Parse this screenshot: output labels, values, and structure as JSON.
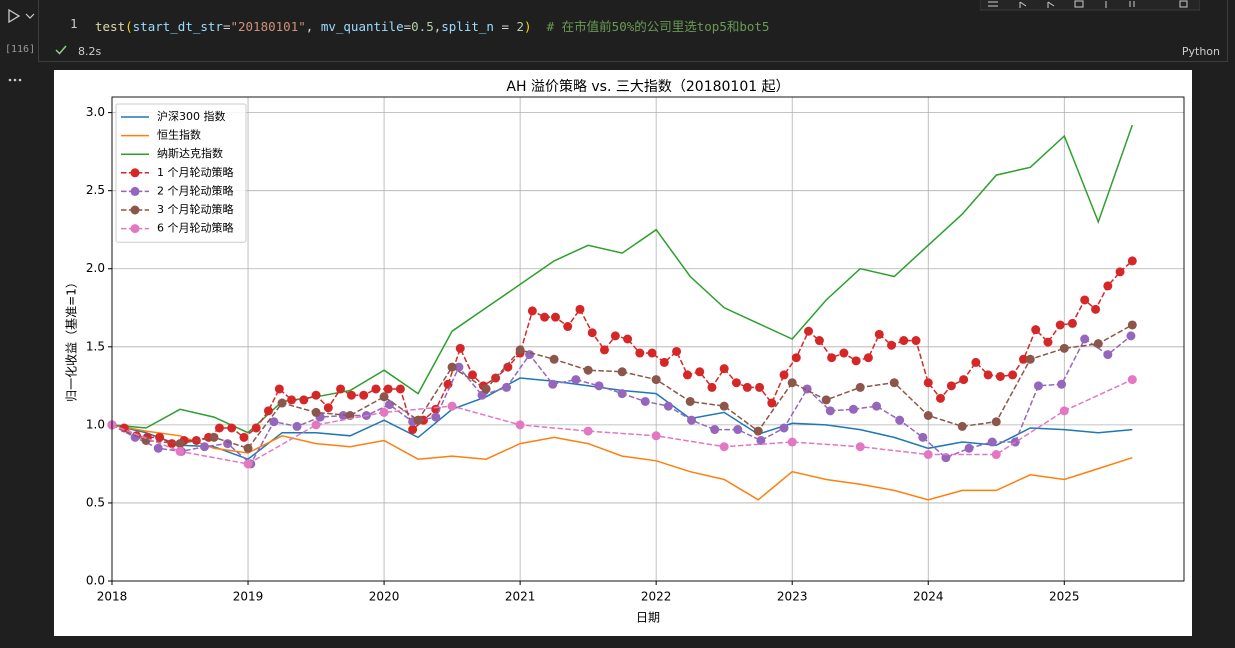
{
  "cell": {
    "execution_count": "[116]",
    "line_number": "1",
    "code_tokens": [
      {
        "text": "test",
        "color": "#dcdcaa"
      },
      {
        "text": "(",
        "color": "#ffd700"
      },
      {
        "text": "start_dt_str",
        "color": "#9cdcfe"
      },
      {
        "text": "=",
        "color": "#d4d4d4"
      },
      {
        "text": "\"20180101\"",
        "color": "#ce9178"
      },
      {
        "text": ", ",
        "color": "#d4d4d4"
      },
      {
        "text": "mv_quantile",
        "color": "#9cdcfe"
      },
      {
        "text": "=",
        "color": "#d4d4d4"
      },
      {
        "text": "0.5",
        "color": "#b5cea8"
      },
      {
        "text": ",",
        "color": "#d4d4d4"
      },
      {
        "text": "split_n",
        "color": "#9cdcfe"
      },
      {
        "text": " = ",
        "color": "#d4d4d4"
      },
      {
        "text": "2",
        "color": "#b5cea8"
      },
      {
        "text": ")",
        "color": "#ffd700"
      },
      {
        "text": "  # 在市值前50%的公司里选top5和bot5",
        "color": "#6a9955"
      }
    ],
    "status_time": "8.2s",
    "language": "Python"
  },
  "chart_data": {
    "type": "line",
    "title": "AH 溢价策略 vs. 三大指数（20180101 起）",
    "x_label": "日期",
    "y_label": "归一化收益（基准=1）",
    "xlim": [
      2018,
      2025.88
    ],
    "xticks": [
      2018,
      2019,
      2020,
      2021,
      2022,
      2023,
      2024,
      2025
    ],
    "ylim": [
      0,
      3.1
    ],
    "yticks": [
      {
        "value": 0,
        "label": "0.0"
      },
      0.5,
      {
        "value": 1,
        "label": "1.0"
      },
      1.5,
      {
        "value": 2,
        "label": "2.0"
      },
      2.5,
      {
        "value": 3,
        "label": "3.0"
      }
    ],
    "grid": true,
    "legend": "upper left",
    "series": [
      {
        "name": "沪深300 指数",
        "color": "#1f77b4",
        "linestyle": "solid",
        "x": [
          2018,
          2018.25,
          2018.5,
          2018.75,
          2019,
          2019.25,
          2019.5,
          2019.75,
          2020,
          2020.25,
          2020.5,
          2020.75,
          2021,
          2021.25,
          2021.5,
          2021.75,
          2022,
          2022.25,
          2022.5,
          2022.75,
          2023,
          2023.25,
          2023.5,
          2023.75,
          2024,
          2024.25,
          2024.5,
          2024.75,
          2025,
          2025.25,
          2025.5
        ],
        "values": [
          1.0,
          0.95,
          0.87,
          0.86,
          0.78,
          0.95,
          0.95,
          0.93,
          1.03,
          0.92,
          1.1,
          1.18,
          1.3,
          1.28,
          1.25,
          1.22,
          1.2,
          1.04,
          1.08,
          0.94,
          1.01,
          1.0,
          0.97,
          0.92,
          0.85,
          0.89,
          0.87,
          0.98,
          0.97,
          0.95,
          0.97
        ]
      },
      {
        "name": "恒生指数",
        "color": "#ff7f0e",
        "linestyle": "solid",
        "x": [
          2018,
          2018.25,
          2018.5,
          2018.75,
          2019,
          2019.25,
          2019.5,
          2019.75,
          2020,
          2020.25,
          2020.5,
          2020.75,
          2021,
          2021.25,
          2021.5,
          2021.75,
          2022,
          2022.25,
          2022.5,
          2022.75,
          2023,
          2023.25,
          2023.5,
          2023.75,
          2024,
          2024.25,
          2024.5,
          2024.75,
          2025,
          2025.25,
          2025.5
        ],
        "values": [
          1.0,
          0.96,
          0.93,
          0.85,
          0.82,
          0.93,
          0.88,
          0.86,
          0.9,
          0.78,
          0.8,
          0.78,
          0.88,
          0.92,
          0.88,
          0.8,
          0.77,
          0.7,
          0.65,
          0.52,
          0.7,
          0.65,
          0.62,
          0.58,
          0.52,
          0.58,
          0.58,
          0.68,
          0.65,
          0.72,
          0.79
        ]
      },
      {
        "name": "纳斯达克指数",
        "color": "#2ca02c",
        "linestyle": "solid",
        "x": [
          2018,
          2018.25,
          2018.5,
          2018.75,
          2019,
          2019.25,
          2019.5,
          2019.75,
          2020,
          2020.25,
          2020.5,
          2020.75,
          2021,
          2021.25,
          2021.5,
          2021.75,
          2022,
          2022.25,
          2022.5,
          2022.75,
          2023,
          2023.25,
          2023.5,
          2023.75,
          2024,
          2024.25,
          2024.5,
          2024.75,
          2025,
          2025.25,
          2025.5
        ],
        "values": [
          1.0,
          0.98,
          1.1,
          1.05,
          0.95,
          1.15,
          1.18,
          1.22,
          1.35,
          1.2,
          1.6,
          1.75,
          1.9,
          2.05,
          2.15,
          2.1,
          2.25,
          1.95,
          1.75,
          1.65,
          1.55,
          1.8,
          2.0,
          1.95,
          2.15,
          2.35,
          2.6,
          2.65,
          2.85,
          2.3,
          2.92
        ]
      },
      {
        "name": "1 个月轮动策略",
        "color": "#d62728",
        "linestyle": "dashed",
        "marker": "o",
        "x": [
          2018.0,
          2018.09,
          2018.18,
          2018.26,
          2018.35,
          2018.44,
          2018.53,
          2018.62,
          2018.71,
          2018.79,
          2018.88,
          2018.97,
          2019.06,
          2019.15,
          2019.23,
          2019.32,
          2019.41,
          2019.5,
          2019.59,
          2019.68,
          2019.76,
          2019.85,
          2019.94,
          2020.03,
          2020.12,
          2020.21,
          2020.29,
          2020.38,
          2020.47,
          2020.56,
          2020.65,
          2020.73,
          2020.82,
          2020.91,
          2021.0,
          2021.09,
          2021.18,
          2021.26,
          2021.35,
          2021.44,
          2021.53,
          2021.62,
          2021.7,
          2021.79,
          2021.88,
          2021.97,
          2022.06,
          2022.15,
          2022.23,
          2022.32,
          2022.41,
          2022.5,
          2022.59,
          2022.67,
          2022.76,
          2022.85,
          2022.94,
          2023.03,
          2023.12,
          2023.2,
          2023.29,
          2023.38,
          2023.47,
          2023.56,
          2023.64,
          2023.73,
          2023.82,
          2023.91,
          2024.0,
          2024.09,
          2024.17,
          2024.26,
          2024.35,
          2024.44,
          2024.53,
          2024.62,
          2024.7,
          2024.79,
          2024.88,
          2024.97,
          2025.06,
          2025.15,
          2025.23,
          2025.32,
          2025.41,
          2025.5
        ],
        "values": [
          1.0,
          0.98,
          0.93,
          0.92,
          0.92,
          0.88,
          0.9,
          0.9,
          0.92,
          0.98,
          0.98,
          0.92,
          0.98,
          1.09,
          1.23,
          1.16,
          1.16,
          1.19,
          1.11,
          1.23,
          1.19,
          1.19,
          1.23,
          1.23,
          1.23,
          0.97,
          1.03,
          1.1,
          1.26,
          1.49,
          1.32,
          1.25,
          1.3,
          1.37,
          1.46,
          1.73,
          1.69,
          1.69,
          1.63,
          1.74,
          1.59,
          1.48,
          1.57,
          1.55,
          1.46,
          1.46,
          1.4,
          1.47,
          1.32,
          1.34,
          1.24,
          1.36,
          1.27,
          1.24,
          1.24,
          1.14,
          1.32,
          1.43,
          1.6,
          1.54,
          1.43,
          1.46,
          1.41,
          1.43,
          1.58,
          1.51,
          1.54,
          1.54,
          1.27,
          1.17,
          1.25,
          1.29,
          1.4,
          1.32,
          1.31,
          1.32,
          1.42,
          1.61,
          1.53,
          1.64,
          1.65,
          1.8,
          1.74,
          1.89,
          1.98,
          2.05
        ]
      },
      {
        "name": "2 个月轮动策略",
        "color": "#9467bd",
        "linestyle": "dashed",
        "marker": "o",
        "x": [
          2018.0,
          2018.17,
          2018.34,
          2018.51,
          2018.68,
          2018.85,
          2019.02,
          2019.19,
          2019.36,
          2019.53,
          2019.7,
          2019.87,
          2020.04,
          2020.21,
          2020.38,
          2020.55,
          2020.72,
          2020.9,
          2021.07,
          2021.24,
          2021.41,
          2021.58,
          2021.75,
          2021.92,
          2022.09,
          2022.26,
          2022.43,
          2022.6,
          2022.77,
          2022.94,
          2023.11,
          2023.28,
          2023.45,
          2023.62,
          2023.79,
          2023.96,
          2024.13,
          2024.3,
          2024.47,
          2024.64,
          2024.81,
          2024.98,
          2025.15,
          2025.32,
          2025.49
        ],
        "values": [
          1.0,
          0.92,
          0.85,
          0.83,
          0.86,
          0.88,
          0.75,
          1.02,
          0.99,
          1.05,
          1.06,
          1.06,
          1.13,
          1.02,
          1.05,
          1.37,
          1.19,
          1.24,
          1.45,
          1.26,
          1.29,
          1.25,
          1.2,
          1.15,
          1.12,
          1.03,
          0.97,
          0.97,
          0.9,
          0.98,
          1.23,
          1.09,
          1.1,
          1.12,
          1.03,
          0.92,
          0.79,
          0.85,
          0.89,
          0.89,
          1.25,
          1.26,
          1.55,
          1.45,
          1.57
        ]
      },
      {
        "name": "3 个月轮动策略",
        "color": "#8c564b",
        "linestyle": "dashed",
        "marker": "o",
        "x": [
          2018,
          2018.25,
          2018.5,
          2018.75,
          2019,
          2019.25,
          2019.5,
          2019.75,
          2020,
          2020.25,
          2020.5,
          2020.75,
          2021,
          2021.25,
          2021.5,
          2021.75,
          2022,
          2022.25,
          2022.5,
          2022.75,
          2023,
          2023.25,
          2023.5,
          2023.75,
          2024,
          2024.25,
          2024.5,
          2024.75,
          2025,
          2025.25,
          2025.5
        ],
        "values": [
          1.0,
          0.9,
          0.88,
          0.92,
          0.85,
          1.14,
          1.08,
          1.06,
          1.18,
          1.03,
          1.37,
          1.23,
          1.48,
          1.42,
          1.35,
          1.34,
          1.29,
          1.15,
          1.12,
          0.96,
          1.27,
          1.16,
          1.24,
          1.27,
          1.06,
          0.99,
          1.02,
          1.42,
          1.49,
          1.52,
          1.64
        ]
      },
      {
        "name": "6 个月轮动策略",
        "color": "#e377c2",
        "linestyle": "dashed",
        "marker": "o",
        "x": [
          2018,
          2018.5,
          2019,
          2019.5,
          2020,
          2020.5,
          2021,
          2021.5,
          2022,
          2022.5,
          2023,
          2023.5,
          2024,
          2024.5,
          2025,
          2025.5
        ],
        "values": [
          1.0,
          0.83,
          0.75,
          1.0,
          1.08,
          1.12,
          1.0,
          0.96,
          0.93,
          0.86,
          0.89,
          0.86,
          0.81,
          0.81,
          1.09,
          1.29
        ]
      }
    ]
  }
}
